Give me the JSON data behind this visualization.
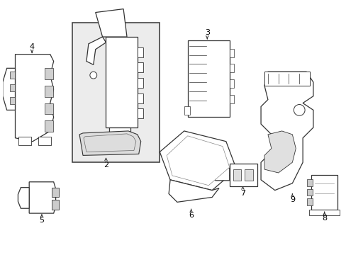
{
  "background_color": "#ffffff",
  "line_color": "#333333",
  "figsize": [
    4.89,
    3.6
  ],
  "dpi": 100,
  "box1_fill": "#e8e8e8",
  "label_fontsize": 8
}
